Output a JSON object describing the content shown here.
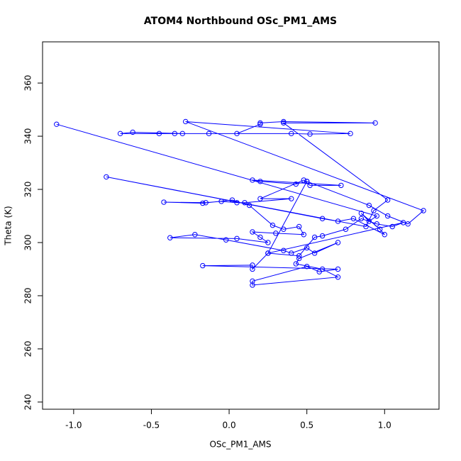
{
  "chart_data": {
    "type": "line",
    "markers": true,
    "title": "ATOM4 Northbound OSc_PM1_AMS",
    "x_label": "OSc_PM1_AMS",
    "y_label": "Theta (K)",
    "color": "#0000ff",
    "xlim": [
      -1.2,
      1.35
    ],
    "ylim": [
      237.3,
      375.5
    ],
    "xticks": [
      {
        "value": -1,
        "label": "-1.0"
      },
      {
        "value": -0.5,
        "label": "-0.5"
      },
      {
        "value": 0,
        "label": "0.0"
      },
      {
        "value": 0.5,
        "label": "0.5"
      },
      {
        "value": 1,
        "label": "1.0"
      }
    ],
    "yticks": [
      240,
      260,
      280,
      300,
      320,
      340,
      360
    ],
    "x": [
      -1.11,
      0.95,
      0.9,
      0.85,
      0.97,
      1.0,
      0.8,
      0.7,
      0.6,
      -0.79,
      0.88,
      0.93,
      1.02,
      0.35,
      0.94,
      0.35,
      0.2,
      0.2,
      0.05,
      -0.13,
      -0.35,
      -0.45,
      -0.7,
      -0.62,
      -0.3,
      0.4,
      0.52,
      0.78,
      -0.28,
      1.25,
      1.15,
      1.02,
      0.9,
      0.5,
      0.43,
      0.2,
      0.15,
      0.72,
      0.52,
      0.48,
      0.2,
      0.4,
      0.1,
      0.05,
      -0.05,
      -0.15,
      -0.42,
      -0.17,
      0.02,
      0.13,
      0.28,
      0.35,
      0.45,
      0.48,
      0.3,
      0.15,
      0.2,
      0.25,
      0.05,
      -0.38,
      -0.22,
      -0.02,
      0.35,
      0.4,
      0.5,
      0.55,
      0.7,
      0.45,
      0.43,
      0.6,
      0.7,
      0.15,
      0.15,
      0.5,
      0.58,
      0.7,
      -0.17,
      0.15,
      0.15,
      0.25,
      0.45,
      0.55,
      0.6,
      0.75,
      0.85,
      0.95,
      1.05,
      1.12,
      0.25,
      0.5
    ],
    "values": [
      344.5,
      310,
      308,
      311,
      305,
      303,
      309,
      308,
      309,
      324.7,
      306,
      312,
      316,
      345,
      345,
      345.5,
      345,
      344.5,
      341,
      341,
      341,
      341,
      341,
      341.5,
      341,
      341,
      340.8,
      341,
      345.5,
      312,
      307,
      310,
      314,
      323,
      322,
      323,
      323.5,
      321.5,
      321.5,
      323.5,
      316.5,
      316.5,
      315,
      315,
      315.5,
      315,
      315.2,
      314.8,
      316,
      314,
      306.5,
      305,
      306,
      303,
      303.5,
      304,
      302,
      300,
      301.5,
      301.8,
      303,
      301,
      297,
      296,
      298,
      296,
      300,
      294,
      292,
      290,
      287,
      284,
      285.5,
      291,
      289,
      290,
      291.3,
      291.5,
      290,
      296,
      295,
      302,
      302.5,
      305,
      309,
      307,
      306,
      307.5,
      296,
      323
    ]
  }
}
